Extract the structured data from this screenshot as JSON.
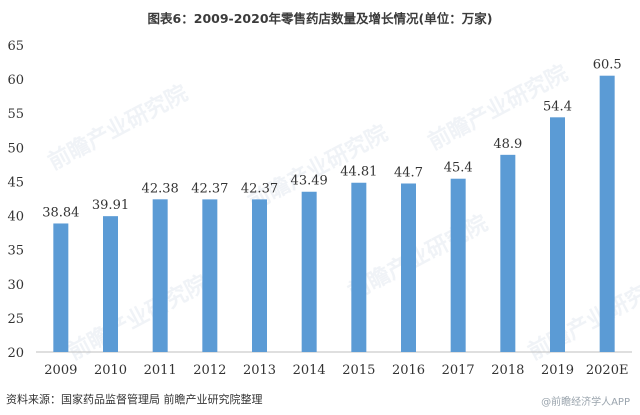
{
  "watermark": "前瞻产业研究院",
  "source": "资料来源：国家药品监督管理局 前瞻产业研究院整理",
  "credit": "@前瞻经济学人APP",
  "colors": {
    "bar": "#5b9bd5",
    "axis": "#bfbfbf"
  },
  "chart_data": {
    "type": "bar",
    "title": "图表6：2009-2020年零售药店数量及增长情况(单位：万家)",
    "xlabel": "",
    "ylabel": "",
    "ylim": [
      20,
      65
    ],
    "yticks": [
      20,
      25,
      30,
      35,
      40,
      45,
      50,
      55,
      60,
      65
    ],
    "grid": false,
    "categories": [
      "2009",
      "2010",
      "2011",
      "2012",
      "2013",
      "2014",
      "2015",
      "2016",
      "2017",
      "2018",
      "2019",
      "2020E"
    ],
    "values": [
      38.84,
      39.91,
      42.38,
      42.37,
      42.37,
      43.49,
      44.81,
      44.7,
      45.4,
      48.9,
      54.4,
      60.5
    ],
    "data_labels": [
      "38.84",
      "39.91",
      "42.38",
      "42.37",
      "42.37",
      "43.49",
      "44.81",
      "44.7",
      "45.4",
      "48.9",
      "54.4",
      "60.5"
    ]
  }
}
